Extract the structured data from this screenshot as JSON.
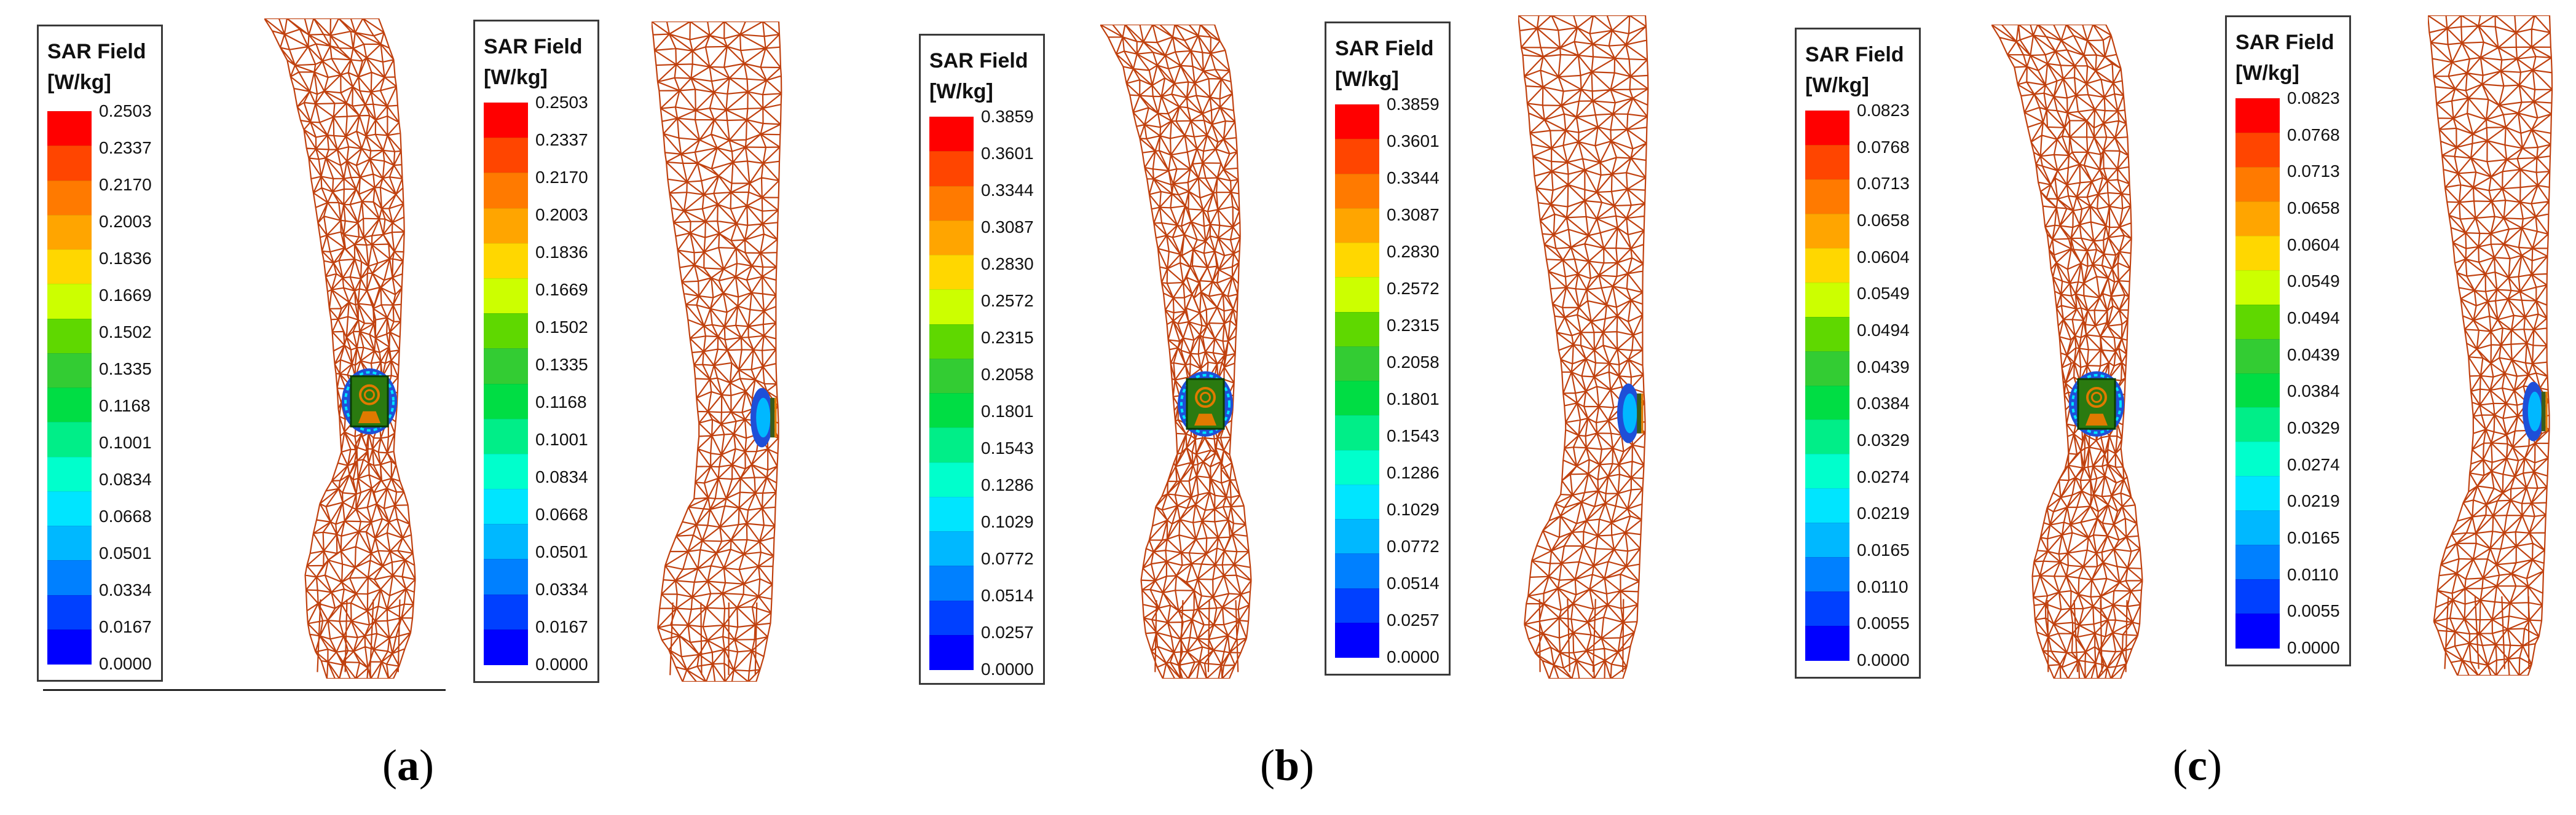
{
  "legend": {
    "title_line1": "SAR Field",
    "title_line2": "[W/kg]",
    "segment_colors": [
      "#ff0000",
      "#ff4500",
      "#ff7a00",
      "#ffa500",
      "#ffd700",
      "#ccff00",
      "#5fd800",
      "#33cc33",
      "#00dd44",
      "#00ee88",
      "#00ffcc",
      "#00e5ff",
      "#00b8ff",
      "#0080ff",
      "#0040ff",
      "#0000ff"
    ]
  },
  "panels": [
    {
      "id": "a",
      "caption_open": "(",
      "caption_letter": "a",
      "caption_close": ")",
      "scale": {
        "max": "0.2503",
        "ticks": [
          "0.2503",
          "0.2337",
          "0.2170",
          "0.2003",
          "0.1836",
          "0.1669",
          "0.1502",
          "0.1335",
          "0.1168",
          "0.1001",
          "0.0834",
          "0.0668",
          "0.0501",
          "0.0334",
          "0.0167",
          "0.0000"
        ]
      }
    },
    {
      "id": "b",
      "caption_open": "(",
      "caption_letter": "b",
      "caption_close": ")",
      "scale": {
        "max": "0.3859",
        "ticks": [
          "0.3859",
          "0.3601",
          "0.3344",
          "0.3087",
          "0.2830",
          "0.2572",
          "0.2315",
          "0.2058",
          "0.1801",
          "0.1543",
          "0.1286",
          "0.1029",
          "0.0772",
          "0.0514",
          "0.0257",
          "0.0000"
        ]
      }
    },
    {
      "id": "c",
      "caption_open": "(",
      "caption_letter": "c",
      "caption_close": ")",
      "scale": {
        "max": "0.0823",
        "ticks": [
          "0.0823",
          "0.0768",
          "0.0713",
          "0.0658",
          "0.0604",
          "0.0549",
          "0.0494",
          "0.0439",
          "0.0384",
          "0.0329",
          "0.0274",
          "0.0219",
          "0.0165",
          "0.0110",
          "0.0055",
          "0.0000"
        ]
      }
    }
  ],
  "colors": {
    "mesh": "#c0410f",
    "antenna_substrate": "#2a7a10",
    "antenna_patch": "#e07a00",
    "sar_hot": "#1e4fd8"
  }
}
